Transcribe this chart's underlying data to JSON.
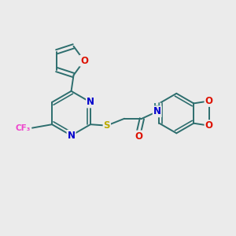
{
  "background_color": "#ebebeb",
  "bond_color": "#2d6e6e",
  "bond_width": 1.4,
  "atom_colors": {
    "O": "#dd1100",
    "N": "#0000cc",
    "S": "#bbaa00",
    "F": "#ee44cc",
    "H": "#448888",
    "C": "#2d6e6e"
  },
  "font_size_atom": 8.5,
  "font_size_small": 7.5
}
